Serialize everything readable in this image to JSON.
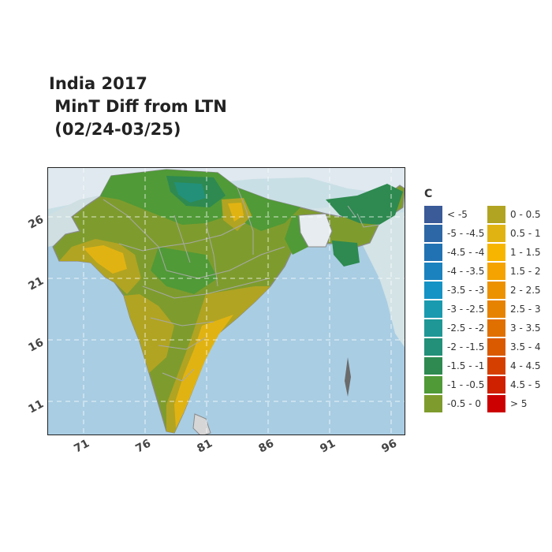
{
  "title": "India 2017\n MinT Diff from LTN\n (02/24-03/25)",
  "map": {
    "x_ticks": [
      "71",
      "76",
      "81",
      "86",
      "91",
      "96"
    ],
    "y_ticks": [
      "26",
      "21",
      "16",
      "11"
    ]
  },
  "legend": {
    "unit": "C",
    "items": [
      {
        "label": "< -5",
        "color": "#3a5a98"
      },
      {
        "label": "-5 - -4.5",
        "color": "#2e67a6"
      },
      {
        "label": "-4.5 - -4",
        "color": "#2172b2"
      },
      {
        "label": "-4 - -3.5",
        "color": "#1a82bf"
      },
      {
        "label": "-3.5 - -3",
        "color": "#1593c5"
      },
      {
        "label": "-3 - -2.5",
        "color": "#1a9aaf"
      },
      {
        "label": "-2.5 - -2",
        "color": "#1f9796"
      },
      {
        "label": "-2 - -1.5",
        "color": "#239079"
      },
      {
        "label": "-1.5 - -1",
        "color": "#2e8a50"
      },
      {
        "label": "-1 - -0.5",
        "color": "#509a37"
      },
      {
        "label": "-0.5 - 0",
        "color": "#7e9c2d"
      },
      {
        "label": "0 - 0.5",
        "color": "#b1a422"
      },
      {
        "label": "0.5 - 1",
        "color": "#e1b312"
      },
      {
        "label": "1 - 1.5",
        "color": "#f7b500"
      },
      {
        "label": "1.5 - 2",
        "color": "#f4a300"
      },
      {
        "label": "2 - 2.5",
        "color": "#ec9200"
      },
      {
        "label": "2.5 - 3",
        "color": "#e68300"
      },
      {
        "label": "3 - 3.5",
        "color": "#e07000"
      },
      {
        "label": "3.5 - 4",
        "color": "#da5a00"
      },
      {
        "label": "4 - 4.5",
        "color": "#d54000"
      },
      {
        "label": "4.5 - 5",
        "color": "#cf2000"
      },
      {
        "label": "> 5",
        "color": "#cc0000"
      }
    ]
  }
}
